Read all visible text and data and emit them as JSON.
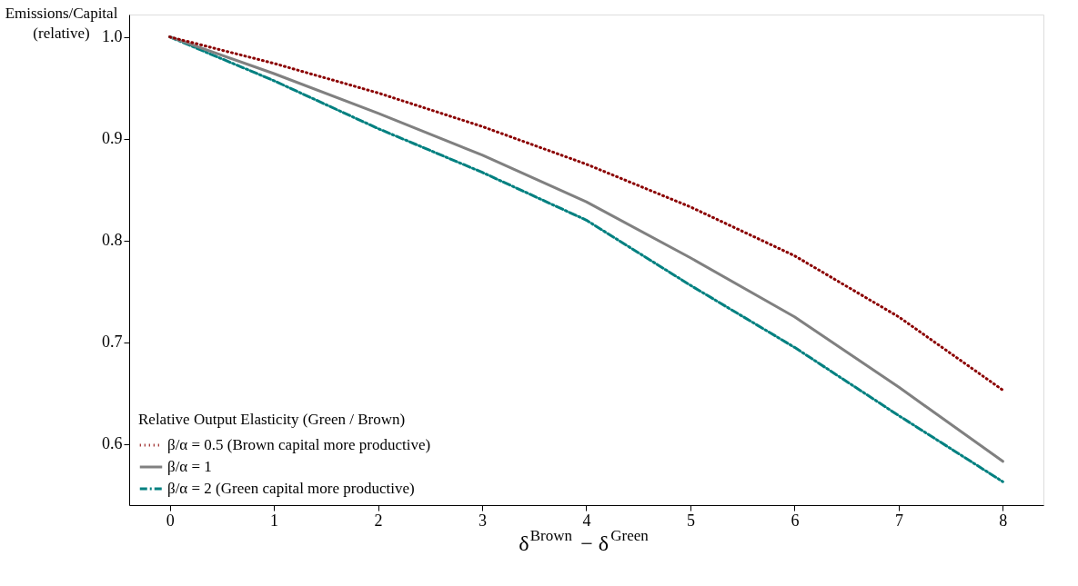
{
  "chart_data": {
    "type": "line",
    "xlabel": "δ$^{Brown}$ − δ$^{Green}$",
    "ylabel": "Emissions/Capital (relative)",
    "legend_title": "Relative Output Elasticity (Green / Brown)",
    "x": [
      0,
      1,
      2,
      3,
      4,
      5,
      6,
      7,
      8
    ],
    "series": [
      {
        "name": "β/α = 0.5 (Brown capital more productive)",
        "color": "#8b0000",
        "line_style": "dotted",
        "values": [
          1.0,
          0.974,
          0.945,
          0.912,
          0.875,
          0.833,
          0.785,
          0.725,
          0.653
        ]
      },
      {
        "name": "β/α = 1",
        "color": "#808080",
        "line_style": "solid",
        "values": [
          1.0,
          0.964,
          0.925,
          0.884,
          0.838,
          0.783,
          0.725,
          0.656,
          0.583
        ]
      },
      {
        "name": "β/α = 2 (Green capital more productive)",
        "color": "#008080",
        "line_style": "dashdot",
        "values": [
          1.0,
          0.957,
          0.91,
          0.867,
          0.82,
          0.756,
          0.695,
          0.628,
          0.563
        ]
      }
    ],
    "xlim": [
      -0.39,
      8.39
    ],
    "ylim": [
      0.54,
      1.022
    ],
    "xticks": [
      0,
      1,
      2,
      3,
      4,
      5,
      6,
      7,
      8
    ],
    "yticks": [
      0.6,
      0.7,
      0.8,
      0.9,
      {
        "value": 1,
        "label": "1.0"
      }
    ],
    "grid": false,
    "legend": "bottom left",
    "marker": "none"
  }
}
